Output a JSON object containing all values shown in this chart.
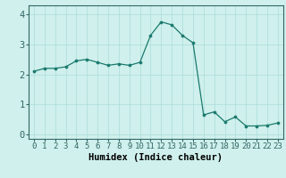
{
  "x": [
    0,
    1,
    2,
    3,
    4,
    5,
    6,
    7,
    8,
    9,
    10,
    11,
    12,
    13,
    14,
    15,
    16,
    17,
    18,
    19,
    20,
    21,
    22,
    23
  ],
  "y": [
    2.1,
    2.2,
    2.2,
    2.25,
    2.45,
    2.5,
    2.4,
    2.3,
    2.35,
    2.3,
    2.4,
    3.3,
    3.75,
    3.65,
    3.3,
    3.05,
    0.65,
    0.75,
    0.42,
    0.58,
    0.28,
    0.28,
    0.3,
    0.38
  ],
  "line_color": "#1a7a6e",
  "marker_color": "#1a7a6e",
  "bg_color": "#cff0ec",
  "grid_color": "#aaddda",
  "xlabel": "Humidex (Indice chaleur)",
  "xlim": [
    -0.5,
    23.5
  ],
  "ylim": [
    -0.15,
    4.3
  ],
  "yticks": [
    0,
    1,
    2,
    3,
    4
  ],
  "xticks": [
    0,
    1,
    2,
    3,
    4,
    5,
    6,
    7,
    8,
    9,
    10,
    11,
    12,
    13,
    14,
    15,
    16,
    17,
    18,
    19,
    20,
    21,
    22,
    23
  ],
  "xlabel_fontsize": 7.5,
  "ytick_fontsize": 7.5,
  "xtick_fontsize": 6.5
}
